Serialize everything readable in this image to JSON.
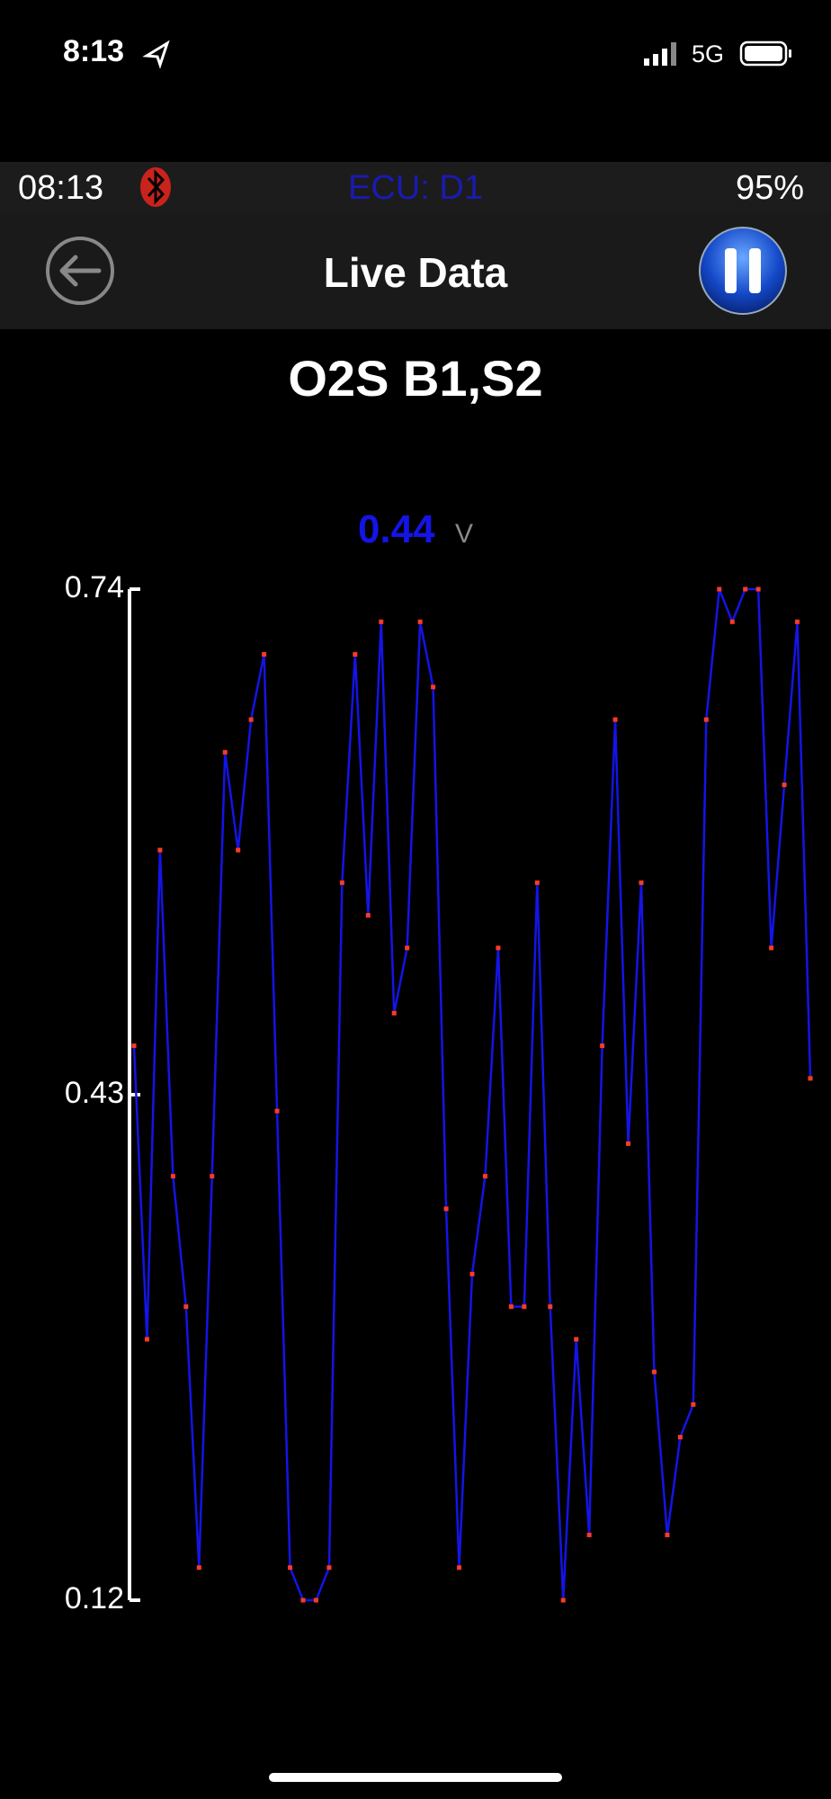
{
  "status_bar": {
    "time": "8:13",
    "network": "5G"
  },
  "app_bar": {
    "time": "08:13",
    "ecu": "ECU: D1",
    "battery": "95%"
  },
  "nav": {
    "title": "Live Data"
  },
  "reading": {
    "value": 0.44,
    "unit": "V"
  },
  "chart_data": {
    "type": "line",
    "title": "O2S B1,S2",
    "values": [
      0.46,
      0.28,
      0.58,
      0.38,
      0.3,
      0.14,
      0.38,
      0.64,
      0.58,
      0.66,
      0.7,
      0.42,
      0.14,
      0.12,
      0.12,
      0.14,
      0.56,
      0.7,
      0.54,
      0.72,
      0.48,
      0.52,
      0.72,
      0.68,
      0.36,
      0.14,
      0.32,
      0.38,
      0.52,
      0.3,
      0.3,
      0.56,
      0.3,
      0.12,
      0.28,
      0.16,
      0.46,
      0.66,
      0.4,
      0.56,
      0.26,
      0.16,
      0.22,
      0.24,
      0.66,
      0.74,
      0.72,
      0.74,
      0.74,
      0.52,
      0.62,
      0.72,
      0.44
    ],
    "color": "#1414e6",
    "marker_color": "#ff3b1f",
    "ylim": [
      0.12,
      0.74
    ],
    "yticks": [
      0.12,
      0.43,
      0.74
    ]
  }
}
